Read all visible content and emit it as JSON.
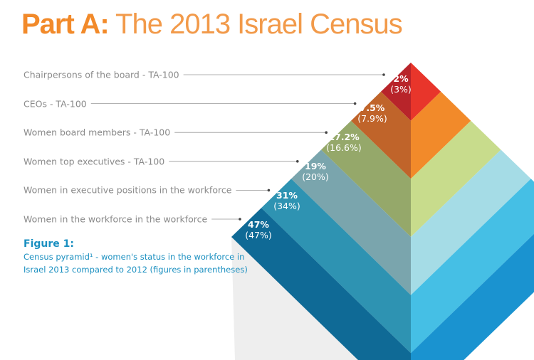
{
  "title": {
    "bold": "Part A:",
    "light": "The 2013 Israel Census"
  },
  "layers": [
    {
      "label": "Chairpersons of the board - TA-100",
      "value_2013": "2%",
      "value_2012": "(3%)",
      "left_color": "#b8242a",
      "right_color": "#e8352b"
    },
    {
      "label": "CEOs - TA-100",
      "value_2013": "7.5%",
      "value_2012": "(7.9%)",
      "left_color": "#c0642a",
      "right_color": "#f28a2a"
    },
    {
      "label": "Women board members - TA-100",
      "value_2013": "17.2%",
      "value_2012": "(16.6%)",
      "left_color": "#95a86a",
      "right_color": "#c8dc8c"
    },
    {
      "label": "Women top executives - TA-100",
      "value_2013": "19%",
      "value_2012": "(20%)",
      "left_color": "#7aa5ad",
      "right_color": "#a5dce6"
    },
    {
      "label": "Women in executive positions in the workforce",
      "value_2013": "31%",
      "value_2012": "(34%)",
      "left_color": "#2e93b2",
      "right_color": "#45bfe5"
    },
    {
      "label": "Women in the workforce in the workforce",
      "value_2013": "47%",
      "value_2012": "(47%)",
      "left_color": "#0f6a96",
      "right_color": "#1a93d0"
    }
  ],
  "figure": {
    "heading": "Figure 1:",
    "caption_line1": "Census pyramid¹ - women's status in the workforce in",
    "caption_line2": "Israel 2013 compared to 2012 (figures in parentheses)"
  }
}
